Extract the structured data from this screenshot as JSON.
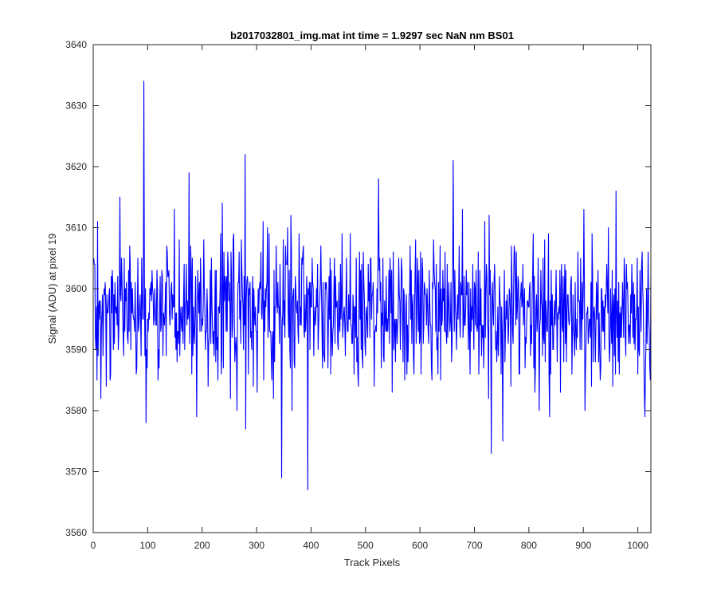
{
  "chart_data": {
    "type": "line",
    "title": "b2017032801_img.mat int time = 1.9297 sec  NaN nm BS01",
    "xlabel": "Track Pixels",
    "ylabel": "Signal (ADU) at pixel 19",
    "xlim": [
      0,
      1024
    ],
    "ylim": [
      3560,
      3640
    ],
    "xticks": [
      0,
      100,
      200,
      300,
      400,
      500,
      600,
      700,
      800,
      900,
      1000
    ],
    "yticks": [
      3560,
      3570,
      3580,
      3590,
      3600,
      3610,
      3620,
      3630,
      3640
    ],
    "grid": false,
    "line_color": "#0000ff",
    "series": [
      {
        "x_start": 1,
        "x_step": 1,
        "baseline": 3596,
        "noise_sd": 6,
        "points": 1024,
        "notable_points": [
          {
            "x": 93,
            "y": 3634
          },
          {
            "x": 279,
            "y": 3622
          },
          {
            "x": 661,
            "y": 3621
          },
          {
            "x": 176,
            "y": 3619
          },
          {
            "x": 524,
            "y": 3618
          },
          {
            "x": 346,
            "y": 3569
          },
          {
            "x": 394,
            "y": 3567
          },
          {
            "x": 731,
            "y": 3573
          },
          {
            "x": 752,
            "y": 3575
          },
          {
            "x": 280,
            "y": 3577
          },
          {
            "x": 190,
            "y": 3579
          },
          {
            "x": 1013,
            "y": 3579
          }
        ]
      }
    ]
  }
}
